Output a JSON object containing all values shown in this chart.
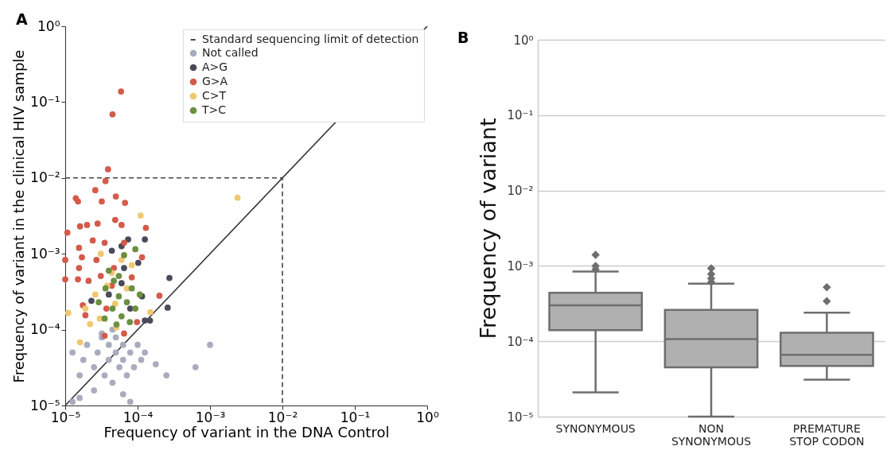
{
  "chart_data": [
    {
      "type": "scatter",
      "title": "A",
      "xlabel": "Frequency of variant in the DNA Control",
      "ylabel": "Frequency of variant in the clinical HIV sample",
      "log": "xy",
      "xlim": [
        1e-05,
        1
      ],
      "ylim": [
        1e-05,
        1
      ],
      "xticks": [
        {
          "value": 1e-05,
          "label": "10⁻⁵"
        },
        {
          "value": 0.0001,
          "label": "10⁻⁴"
        },
        {
          "value": 0.001,
          "label": "10⁻³"
        },
        {
          "value": 0.01,
          "label": "10⁻²"
        },
        {
          "value": 0.1,
          "label": "10⁻¹"
        },
        {
          "value": 1,
          "label": "10⁰"
        }
      ],
      "yticks": [
        {
          "value": 1e-05,
          "label": "10⁻⁵"
        },
        {
          "value": 0.0001,
          "label": "10⁻⁴"
        },
        {
          "value": 0.001,
          "label": "10⁻³"
        },
        {
          "value": 0.01,
          "label": "10⁻²"
        },
        {
          "value": 0.1,
          "label": "10⁻¹"
        },
        {
          "value": 1,
          "label": "10⁰"
        }
      ],
      "legend": "top right",
      "marker": "circle",
      "series": [
        {
          "name": "Standard sequencing limit of detection",
          "type": "line",
          "line_style": "dashed",
          "marker": "none",
          "color": "#444444",
          "x": [
            1e-05,
            0.01,
            0.01
          ],
          "values": [
            0.01,
            0.01,
            1e-05
          ]
        },
        {
          "type": "line",
          "marker": "none",
          "color": "#333333",
          "x": [
            1e-05,
            1
          ],
          "values": [
            1e-05,
            1
          ]
        },
        {
          "name": "Not called",
          "color": "#a8acbc",
          "x": [
            1.26e-05,
            1.58e-05,
            1.78e-05,
            2e-05,
            2.5e-05,
            2.8e-05,
            3.2e-05,
            3.5e-05,
            4e-05,
            4e-05,
            4.5e-05,
            5e-05,
            5e-05,
            5.6e-05,
            6.3e-05,
            6.3e-05,
            7.1e-05,
            7.9e-05,
            8.9e-05,
            0.0001,
            0.000112,
            0.000126,
            2.5e-05,
            6.3e-05,
            7.9e-05,
            1.26e-05,
            1.58e-05,
            0.000178,
            0.00025,
            3.2e-05,
            4.5e-05,
            0.001,
            0.00063
          ],
          "values": [
            5e-05,
            2.5e-05,
            4e-05,
            6.3e-05,
            3.2e-05,
            5e-05,
            7.9e-05,
            2.5e-05,
            4e-05,
            6.3e-05,
            2e-05,
            5e-05,
            7.9e-05,
            3.2e-05,
            4e-05,
            6.3e-05,
            2.5e-05,
            5e-05,
            3.2e-05,
            6.3e-05,
            4e-05,
            5e-05,
            1.58e-05,
            1.41e-05,
            1.12e-05,
            1.12e-05,
            1.26e-05,
            3.5e-05,
            2.5e-05,
            8.9e-05,
            0.0001,
            6.3e-05,
            3.2e-05
          ]
        },
        {
          "name": "A>G",
          "color": "#4a4a5a",
          "x": [
            7.4e-05,
            0.000126,
            6e-05,
            0.000275,
            0.00026,
            7.9e-05,
            0.000126,
            0.000148,
            2.3e-05,
            0.000115,
            4.4e-05,
            0.000102,
            6.5e-05,
            4e-05,
            6e-05
          ],
          "values": [
            0.00155,
            0.00155,
            0.00126,
            0.00048,
            0.000195,
            0.00019,
            0.000132,
            0.000132,
            0.00024,
            0.000275,
            0.0011,
            0.00076,
            0.00065,
            0.00029,
            0.00041
          ]
        },
        {
          "name": "G>A",
          "color": "#d45a4a",
          "x": [
            5.9e-05,
            4.5e-05,
            3.9e-05,
            3.6e-05,
            2.6e-05,
            1.4e-05,
            1.5e-05,
            5e-05,
            3.2e-05,
            6.7e-05,
            1.07e-05,
            1.6e-05,
            2e-05,
            2.8e-05,
            4.9e-05,
            6e-05,
            0.00013,
            1.55e-05,
            2.4e-05,
            3.5e-05,
            6.5e-05,
            1e-05,
            1.7e-05,
            2.7e-05,
            4.7e-05,
            0.000115,
            1.55e-05,
            1e-05,
            1.5e-05,
            2.1e-05,
            3.1e-05,
            8.3e-05,
            0.0002,
            1.75e-05,
            1.9e-05,
            3.7e-05,
            6.5e-05,
            3.5e-05,
            9.8e-05,
            4.4e-05
          ],
          "values": [
            0.138,
            0.069,
            0.013,
            0.0091,
            0.0069,
            0.0054,
            0.0049,
            0.0057,
            0.0049,
            0.0047,
            0.0019,
            0.0023,
            0.0024,
            0.0025,
            0.0028,
            0.0024,
            0.0022,
            0.0012,
            0.0015,
            0.0014,
            0.0014,
            0.00083,
            0.0009,
            0.00083,
            0.00065,
            0.0009,
            0.00065,
            0.00046,
            0.00046,
            0.00044,
            0.00051,
            0.00049,
            0.00028,
            0.00021,
            0.000155,
            0.00019,
            8.9e-05,
            8.3e-05,
            0.000126,
            0.00038
          ]
        },
        {
          "name": "C>T",
          "color": "#f0c870",
          "x": [
            0.00011,
            0.0024,
            1.1e-05,
            1.6e-05,
            1.9e-05,
            2.6e-05,
            3.1e-05,
            4.4e-05,
            6e-05,
            3.8e-05,
            7.1e-05,
            2.2e-05,
            0.00015,
            4.9e-05,
            3e-05,
            8.3e-05,
            5.1e-05
          ],
          "values": [
            0.0032,
            0.0055,
            0.000166,
            6.8e-05,
            0.00019,
            0.00029,
            0.001,
            0.00056,
            0.00083,
            0.00038,
            0.00035,
            0.000118,
            0.00017,
            0.00022,
            0.00014,
            0.00071,
            0.000107
          ]
        },
        {
          "name": "T>C",
          "color": "#6a9040",
          "x": [
            9.3e-05,
            6.5e-05,
            4.7e-05,
            3.6e-05,
            5.5e-05,
            7.1e-05,
            4.5e-05,
            6e-05,
            3.5e-05,
            9.3e-05,
            2.9e-05,
            8.3e-05,
            5.1e-05,
            7.8e-05,
            0.000107,
            4e-05,
            5.5e-05
          ],
          "values": [
            0.00115,
            0.00096,
            0.00044,
            0.00035,
            0.000275,
            0.00023,
            0.00019,
            0.00015,
            0.00014,
            0.00019,
            0.00023,
            0.00035,
            0.000117,
            0.000126,
            0.00029,
            0.0006,
            0.00051
          ]
        }
      ]
    },
    {
      "type": "box",
      "title": "B",
      "ylabel": "Frequency of variant",
      "log": true,
      "grid": "y",
      "color": "#b0b0b0",
      "marker": "diamond",
      "ylim": [
        1e-05,
        1
      ],
      "yticks": [
        {
          "value": 1e-05,
          "label": "10⁻⁵"
        },
        {
          "value": 0.0001,
          "label": "10⁻⁴"
        },
        {
          "value": 0.001,
          "label": "10⁻³"
        },
        {
          "value": 0.01,
          "label": "10⁻²"
        },
        {
          "value": 0.1,
          "label": "10⁻¹"
        },
        {
          "value": 1,
          "label": "10⁰"
        }
      ],
      "categories": [
        "SYNONYMOUS",
        "NON SYNONYMOUS",
        "PREMATURE STOP CODON"
      ],
      "boxes": [
        {
          "low": 2.1e-05,
          "q1": 0.00014,
          "median": 0.0003,
          "q3": 0.00044,
          "high": 0.00084,
          "outliers": [
            0.0014,
            0.001,
            0.0009
          ]
        },
        {
          "low": 1e-05,
          "q1": 4.5e-05,
          "median": 0.000107,
          "q3": 0.00026,
          "high": 0.00058,
          "outliers": [
            0.00093,
            0.00078,
            0.00068,
            0.00061
          ]
        },
        {
          "low": 3.1e-05,
          "q1": 4.7e-05,
          "median": 6.6e-05,
          "q3": 0.00013,
          "high": 0.00024,
          "outliers": [
            0.00052,
            0.00034
          ]
        }
      ]
    }
  ]
}
